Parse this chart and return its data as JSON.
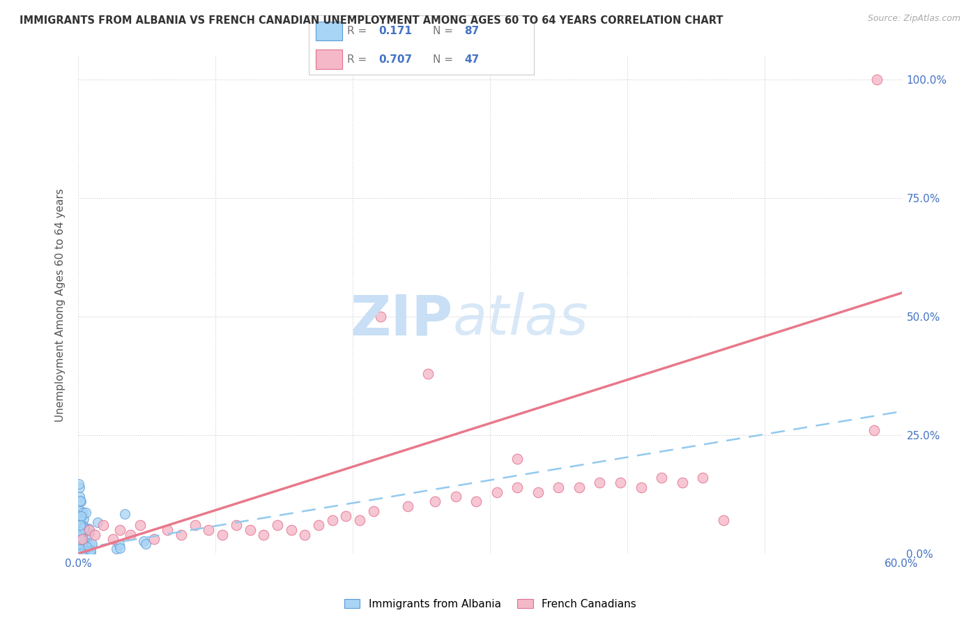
{
  "title": "IMMIGRANTS FROM ALBANIA VS FRENCH CANADIAN UNEMPLOYMENT AMONG AGES 60 TO 64 YEARS CORRELATION CHART",
  "source": "Source: ZipAtlas.com",
  "ylabel": "Unemployment Among Ages 60 to 64 years",
  "x_min": 0.0,
  "x_max": 0.6,
  "y_min": 0.0,
  "y_max": 1.05,
  "albania_R": 0.171,
  "albania_N": 87,
  "french_R": 0.707,
  "french_N": 47,
  "albania_color": "#a8d4f5",
  "albania_edge_color": "#5b9bd5",
  "french_color": "#f5b8c8",
  "french_edge_color": "#e07090",
  "albania_line_color": "#92c9ef",
  "french_line_color": "#e8788a",
  "watermark_zip": "ZIP",
  "watermark_atlas": "atlas",
  "legend_label_albania": "Immigrants from Albania",
  "legend_label_french": "French Canadians",
  "fr_line_start_y": 0.0,
  "fr_line_end_y": 0.55,
  "alb_line_start_y": 0.01,
  "alb_line_end_y": 0.3
}
